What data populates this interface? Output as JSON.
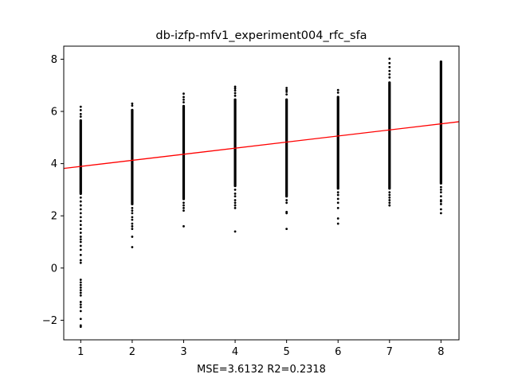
{
  "chart_data": {
    "type": "scatter",
    "title": "db-izfp-mfv1_experiment004_rfc_sfa",
    "xlabel": "MSE=3.6132 R2=0.2318",
    "ylabel": "",
    "xlim": [
      0.67,
      8.35
    ],
    "ylim": [
      -2.75,
      8.5
    ],
    "x_ticks": [
      1,
      2,
      3,
      4,
      5,
      6,
      7,
      8
    ],
    "y_ticks": [
      -2,
      0,
      2,
      4,
      6,
      8
    ],
    "x_tick_labels": [
      "1",
      "2",
      "3",
      "4",
      "5",
      "6",
      "7",
      "8"
    ],
    "y_tick_labels": [
      "−2",
      "0",
      "2",
      "4",
      "6",
      "8"
    ],
    "grid": false,
    "point_color": "#000000",
    "fit_line_color": "#ff0000",
    "fit_line": {
      "slope": 0.233,
      "intercept": 3.66
    },
    "columns": [
      {
        "x": 1,
        "dense_min": 2.8,
        "dense_max": 5.7,
        "outliers": [
          6.18,
          6.05,
          5.9,
          5.8,
          2.7,
          2.55,
          2.4,
          2.25,
          2.1,
          1.95,
          1.8,
          1.65,
          1.5,
          1.35,
          1.2,
          1.1,
          1.0,
          0.85,
          0.7,
          0.5,
          0.3,
          0.2,
          -0.45,
          -0.55,
          -0.65,
          -0.75,
          -0.85,
          -0.95,
          -1.05,
          -1.3,
          -1.4,
          -1.5,
          -1.65,
          -1.95,
          -2.2,
          -2.25
        ]
      },
      {
        "x": 2,
        "dense_min": 2.4,
        "dense_max": 6.1,
        "outliers": [
          6.3,
          6.22,
          2.3,
          2.2,
          2.1,
          1.95,
          1.85,
          1.7,
          1.6,
          1.5,
          1.2,
          0.8
        ]
      },
      {
        "x": 3,
        "dense_min": 2.6,
        "dense_max": 6.25,
        "outliers": [
          6.68,
          6.55,
          6.45,
          6.35,
          2.5,
          2.4,
          2.3,
          2.2,
          1.6
        ]
      },
      {
        "x": 4,
        "dense_min": 3.1,
        "dense_max": 6.5,
        "outliers": [
          6.95,
          6.88,
          6.8,
          6.7,
          6.6,
          3.0,
          2.85,
          2.75,
          2.6,
          2.5,
          2.4,
          2.3,
          1.4
        ]
      },
      {
        "x": 5,
        "dense_min": 2.7,
        "dense_max": 6.5,
        "outliers": [
          6.9,
          6.82,
          6.75,
          6.65,
          2.6,
          2.5,
          2.15,
          2.1,
          1.5
        ]
      },
      {
        "x": 6,
        "dense_min": 3.0,
        "dense_max": 6.6,
        "outliers": [
          6.82,
          6.72,
          2.9,
          2.8,
          2.65,
          2.5,
          2.3,
          1.9,
          1.7
        ]
      },
      {
        "x": 7,
        "dense_min": 3.0,
        "dense_max": 7.15,
        "outliers": [
          8.02,
          7.85,
          7.7,
          7.55,
          7.42,
          7.3,
          2.9,
          2.8,
          2.7,
          2.6,
          2.5,
          2.4
        ]
      },
      {
        "x": 8,
        "dense_min": 3.2,
        "dense_max": 7.95,
        "outliers": [
          3.1,
          3.0,
          2.9,
          2.75,
          2.6,
          2.55,
          2.45,
          2.25,
          2.1
        ]
      }
    ]
  }
}
